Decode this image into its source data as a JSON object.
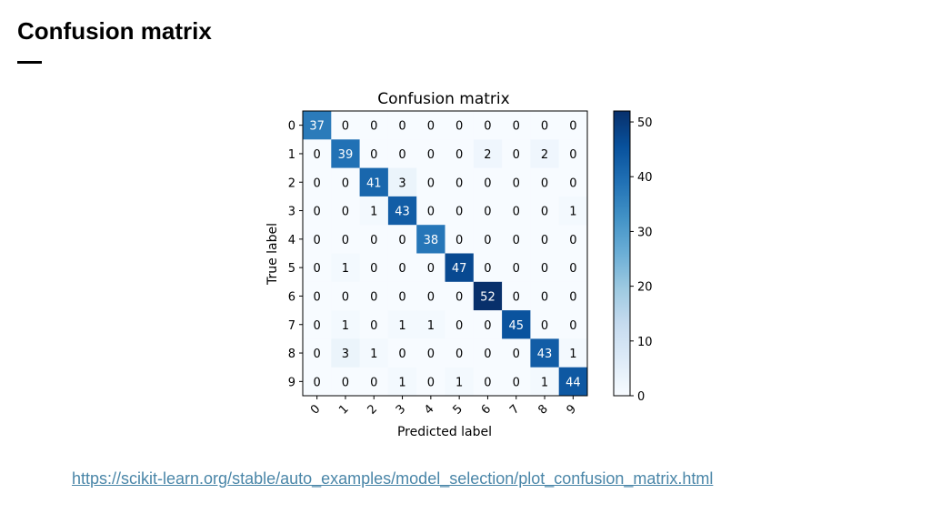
{
  "slide": {
    "title": "Confusion matrix",
    "link_text": "https://scikit-learn.org/stable/auto_examples/model_selection/plot_confusion_matrix.html"
  },
  "chart_data": {
    "type": "heatmap",
    "title": "Confusion matrix",
    "xlabel": "Predicted label",
    "ylabel": "True label",
    "x_ticks": [
      "0",
      "1",
      "2",
      "3",
      "4",
      "5",
      "6",
      "7",
      "8",
      "9"
    ],
    "y_ticks": [
      "0",
      "1",
      "2",
      "3",
      "4",
      "5",
      "6",
      "7",
      "8",
      "9"
    ],
    "matrix": [
      [
        37,
        0,
        0,
        0,
        0,
        0,
        0,
        0,
        0,
        0
      ],
      [
        0,
        39,
        0,
        0,
        0,
        0,
        2,
        0,
        2,
        0
      ],
      [
        0,
        0,
        41,
        3,
        0,
        0,
        0,
        0,
        0,
        0
      ],
      [
        0,
        0,
        1,
        43,
        0,
        0,
        0,
        0,
        0,
        1
      ],
      [
        0,
        0,
        0,
        0,
        38,
        0,
        0,
        0,
        0,
        0
      ],
      [
        0,
        1,
        0,
        0,
        0,
        47,
        0,
        0,
        0,
        0
      ],
      [
        0,
        0,
        0,
        0,
        0,
        0,
        52,
        0,
        0,
        0
      ],
      [
        0,
        1,
        0,
        1,
        1,
        0,
        0,
        45,
        0,
        0
      ],
      [
        0,
        3,
        1,
        0,
        0,
        0,
        0,
        0,
        43,
        1
      ],
      [
        0,
        0,
        0,
        1,
        0,
        1,
        0,
        0,
        1,
        44
      ]
    ],
    "colorbar": {
      "min": 0,
      "max": 52,
      "ticks": [
        0,
        10,
        20,
        30,
        40,
        50
      ],
      "colormap": "Blues"
    }
  }
}
